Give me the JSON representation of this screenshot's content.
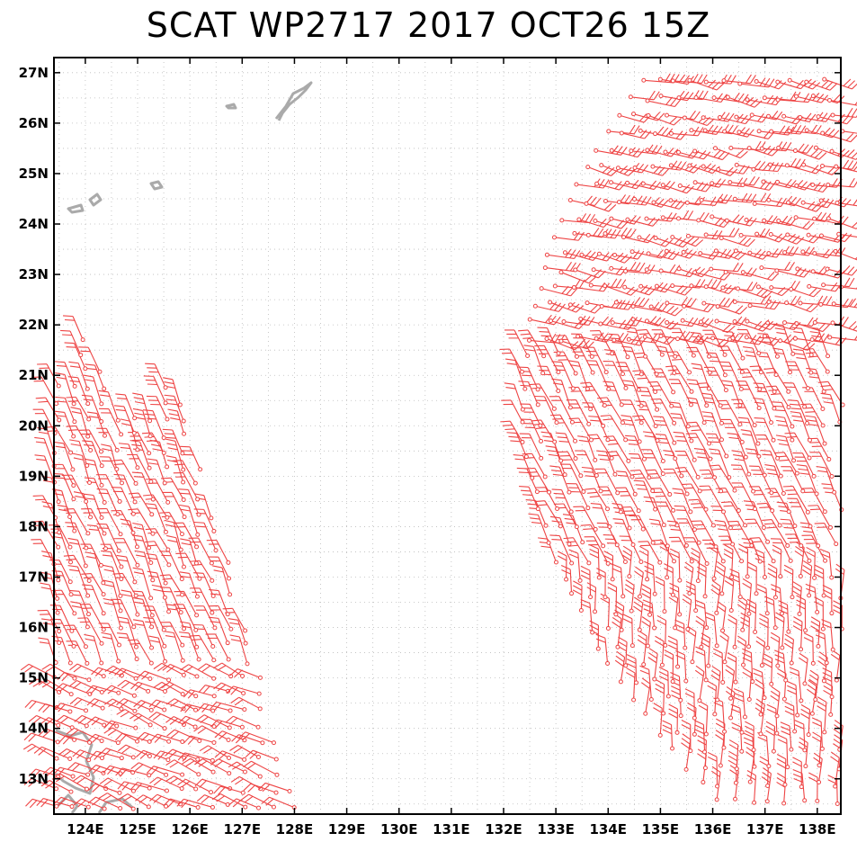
{
  "title": "SCAT WP2717 2017 OCT26 15Z",
  "map": {
    "lon_range": [
      123.4,
      138.45
    ],
    "lat_range": [
      12.3,
      27.3
    ],
    "lon_ticks": [
      "124E",
      "125E",
      "126E",
      "127E",
      "128E",
      "129E",
      "130E",
      "131E",
      "132E",
      "133E",
      "134E",
      "135E",
      "136E",
      "137E",
      "138E"
    ],
    "lat_ticks": [
      "13N",
      "14N",
      "15N",
      "16N",
      "17N",
      "18N",
      "19N",
      "20N",
      "21N",
      "22N",
      "23N",
      "24N",
      "25N",
      "26N",
      "27N"
    ],
    "grid": "dotted",
    "barb_color": "#ee4444",
    "land_color": "#aaaaaa"
  }
}
